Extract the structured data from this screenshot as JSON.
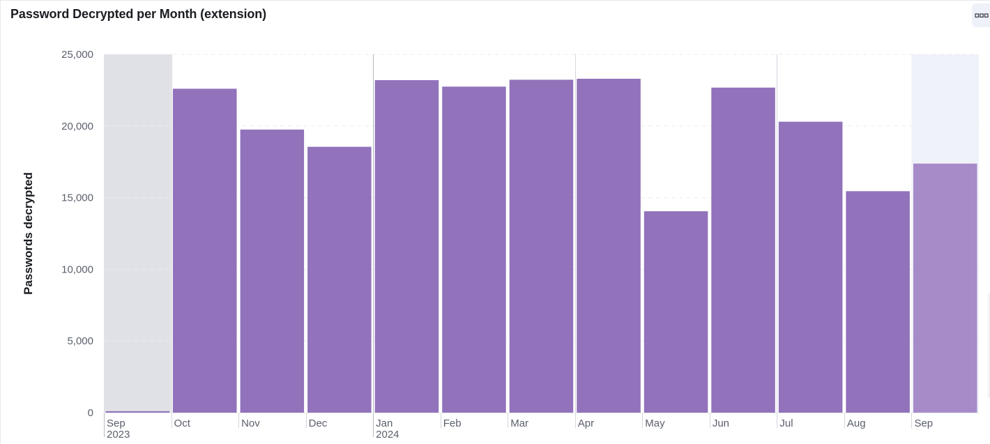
{
  "panel": {
    "title": "Password Decrypted per Month (extension)",
    "options_icon": "panel-options-icon"
  },
  "chart_data": {
    "type": "bar",
    "title": "Password Decrypted per Month (extension)",
    "xlabel": "",
    "ylabel": "Passwords decrypted",
    "ylim": [
      0,
      25000
    ],
    "y_ticks": [
      0,
      5000,
      10000,
      15000,
      20000,
      25000
    ],
    "y_tick_labels": [
      "0",
      "5,000",
      "10,000",
      "15,000",
      "20,000",
      "25,000"
    ],
    "grid": true,
    "categories": [
      "Sep 2023",
      "Oct",
      "Nov",
      "Dec",
      "Jan 2024",
      "Feb",
      "Mar",
      "Apr",
      "May",
      "Jun",
      "Jul",
      "Aug",
      "Sep"
    ],
    "x_tick_labels": [
      {
        "line1": "Sep",
        "line2": "2023"
      },
      {
        "line1": "Oct",
        "line2": ""
      },
      {
        "line1": "Nov",
        "line2": ""
      },
      {
        "line1": "Dec",
        "line2": ""
      },
      {
        "line1": "Jan",
        "line2": "2024"
      },
      {
        "line1": "Feb",
        "line2": ""
      },
      {
        "line1": "Mar",
        "line2": ""
      },
      {
        "line1": "Apr",
        "line2": ""
      },
      {
        "line1": "May",
        "line2": ""
      },
      {
        "line1": "Jun",
        "line2": ""
      },
      {
        "line1": "Jul",
        "line2": ""
      },
      {
        "line1": "Aug",
        "line2": ""
      },
      {
        "line1": "Sep",
        "line2": ""
      }
    ],
    "values": [
      100,
      22600,
      19750,
      18550,
      23200,
      22750,
      23230,
      23300,
      14050,
      22680,
      20300,
      15450,
      17380
    ],
    "partial_periods": [
      "Sep 2023",
      "Sep"
    ],
    "colors": {
      "bar": "#9172bb",
      "bar_partial": "#a68bc8",
      "partial_bg_start": "#e0e1e6",
      "partial_bg_end": "#f0f2fa",
      "grid": "#e9ebef",
      "month_separator": "#d3d6dc",
      "year_separator": "#b4b8c0",
      "tick_text": "#5a5f6b"
    }
  }
}
